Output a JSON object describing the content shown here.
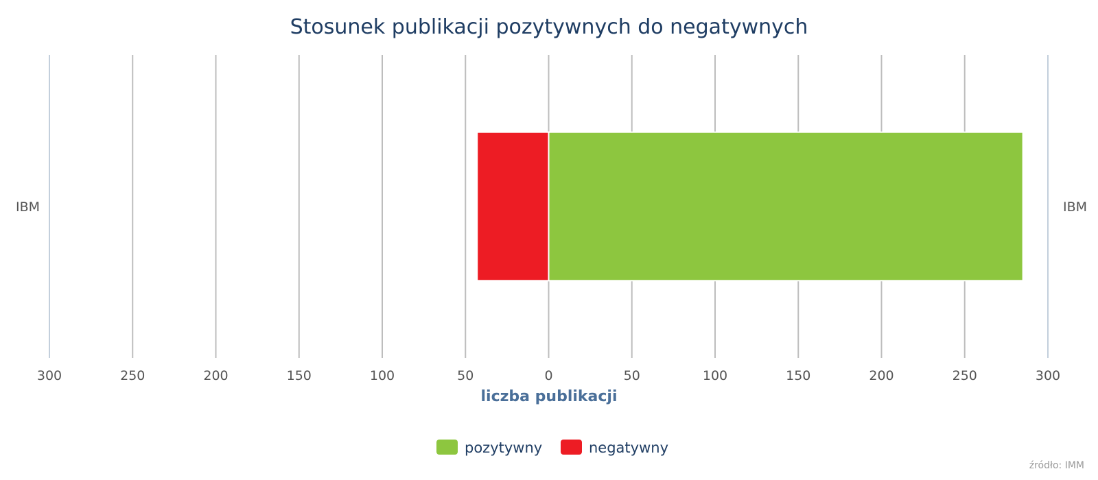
{
  "chart_data": {
    "type": "bar",
    "orientation": "horizontal",
    "stacking": "diverging",
    "title": "Stosunek publikacji pozytywnych do negatywnych",
    "xlabel": "liczba publikacji",
    "categories": [
      "IBM"
    ],
    "xlim": [
      -300,
      300
    ],
    "x_ticks": [
      -300,
      -250,
      -200,
      -150,
      -100,
      -50,
      0,
      50,
      100,
      150,
      200,
      250,
      300
    ],
    "x_tick_labels": [
      "300",
      "250",
      "200",
      "150",
      "100",
      "50",
      "0",
      "50",
      "100",
      "150",
      "200",
      "250",
      "300"
    ],
    "grid": true,
    "legend_position": "bottom-center",
    "series": [
      {
        "name": "pozytywny",
        "color": "#8dc63f",
        "values": [
          285
        ]
      },
      {
        "name": "negatywny",
        "color": "#ed1c24",
        "values": [
          -43
        ]
      }
    ]
  },
  "credits": "źródło: IMM"
}
